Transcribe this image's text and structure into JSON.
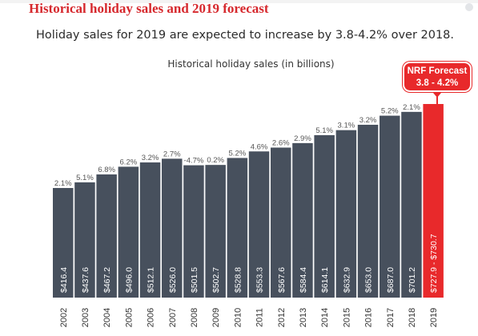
{
  "header": {
    "title": "Historical holiday sales and 2019 forecast",
    "subtitle": "Holiday sales for 2019 are expected to increase by 3.8-4.2% over 2018."
  },
  "callout": {
    "line1": "NRF Forecast",
    "line2": "3.8 - 4.2%"
  },
  "colors": {
    "title": "#d6282d",
    "bar": "#47505d",
    "forecast_bar": "#e8292b",
    "pct_text": "#555555",
    "value_text": "#ffffff"
  },
  "chart_data": {
    "type": "bar",
    "title": "Historical holiday sales (in billions)",
    "categories": [
      "2002",
      "2003",
      "2004",
      "2005",
      "2006",
      "2007",
      "2008",
      "2009",
      "2010",
      "2011",
      "2012",
      "2013",
      "2014",
      "2015",
      "2016",
      "2017",
      "2018",
      "2019"
    ],
    "values": [
      416.4,
      437.6,
      467.2,
      496.0,
      512.1,
      526.0,
      501.5,
      502.7,
      528.8,
      553.3,
      567.6,
      584.4,
      614.1,
      632.9,
      653.0,
      687.0,
      701.2,
      730.7
    ],
    "value_labels": [
      "$416.4",
      "$437.6",
      "$467.2",
      "$496.0",
      "$512.1",
      "$526.0",
      "$501.5",
      "$502.7",
      "$528.8",
      "$553.3",
      "$567.6",
      "$584.4",
      "$614.1",
      "$632.9",
      "$653.0",
      "$687.0",
      "$701.2",
      "$727.9 - $730.7"
    ],
    "growth_labels": [
      "2.1%",
      "5.1%",
      "6.8%",
      "6.2%",
      "3.2%",
      "2.7%",
      "-4.7%",
      "0.2%",
      "5.2%",
      "4.6%",
      "2.6%",
      "2.9%",
      "5.1%",
      "3.1%",
      "3.2%",
      "5.2%",
      "2.1%",
      ""
    ],
    "forecast_index": 17,
    "forecast_range": [
      727.9,
      730.7
    ]
  }
}
